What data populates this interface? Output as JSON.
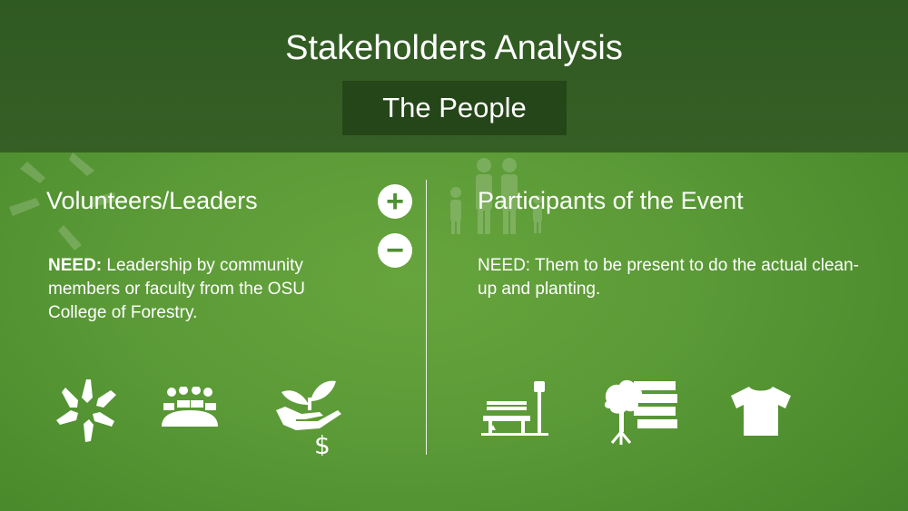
{
  "slide": {
    "title": "Stakeholders Analysis",
    "subtitle": "The People"
  },
  "left": {
    "heading": "Volunteers/Leaders",
    "need_label": "NEED:",
    "need_text": " Leadership by community members or faculty from the OSU College of Forestry.",
    "icons": [
      "hands-circle-icon",
      "audience-icon",
      "plant-money-icon"
    ]
  },
  "right": {
    "heading": "Participants of the Event",
    "need_text": "NEED: Them to be present to do the actual clean-up and planting.",
    "icons": [
      "park-bench-icon",
      "tree-books-icon",
      "tshirt-icon"
    ]
  },
  "controls": {
    "plus": "+",
    "minus": "−"
  },
  "colors": {
    "header": "#2f5a21",
    "background": "#5b9a37",
    "subtitle_box": "#254619"
  }
}
